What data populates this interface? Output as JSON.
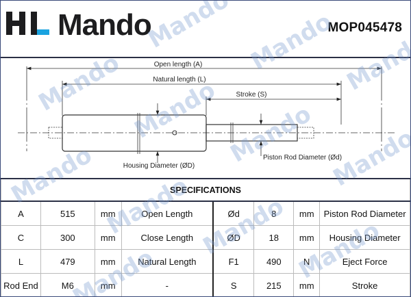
{
  "header": {
    "logo_text": "HL Mando",
    "part_number": "MOP045478"
  },
  "watermark": "Mando",
  "diagram": {
    "open_length_label": "Open length (A)",
    "natural_length_label": "Natural length (L)",
    "stroke_label": "Stroke (S)",
    "housing_diameter_label": "Housing Diameter (ØD)",
    "piston_rod_diameter_label": "Piston Rod Diameter (Ød)"
  },
  "specs": {
    "title": "SPECIFICATIONS",
    "rows": [
      [
        "A",
        "515",
        "mm",
        "Open Length",
        "Ød",
        "8",
        "mm",
        "Piston Rod Diameter"
      ],
      [
        "C",
        "300",
        "mm",
        "Close Length",
        "ØD",
        "18",
        "mm",
        "Housing Diameter"
      ],
      [
        "L",
        "479",
        "mm",
        "Natural Length",
        "F1",
        "490",
        "N",
        "Eject Force"
      ],
      [
        "Rod End",
        "M6",
        "mm",
        "-",
        "S",
        "215",
        "mm",
        "Stroke"
      ]
    ]
  },
  "colors": {
    "logo_accent": "#1aa3e0",
    "watermark": "#789bcd"
  }
}
